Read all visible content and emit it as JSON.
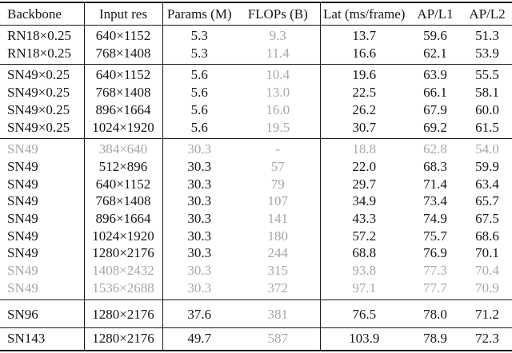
{
  "table": {
    "colors": {
      "text": "#161616",
      "muted": "#a7a7a7",
      "rule": "#1b1b1b"
    },
    "muted_column_index": 3,
    "columns": [
      {
        "label": "Backbone",
        "align": "left"
      },
      {
        "label": "Input res",
        "align": "center"
      },
      {
        "label": "Params (M)",
        "align": "center"
      },
      {
        "label": "FLOPs (B)",
        "align": "center"
      },
      {
        "label": "Lat (ms/frame)",
        "align": "center"
      },
      {
        "label": "AP/L1",
        "align": "center"
      },
      {
        "label": "AP/L2",
        "align": "center"
      }
    ],
    "sections": [
      {
        "name": "RN18x0.25",
        "rows": [
          {
            "muted": false,
            "cells": [
              "RN18×0.25",
              "640×1152",
              "5.3",
              "9.3",
              "13.7",
              "59.6",
              "51.3"
            ]
          },
          {
            "muted": false,
            "cells": [
              "RN18×0.25",
              "768×1408",
              "5.3",
              "11.4",
              "16.6",
              "62.1",
              "53.9"
            ]
          }
        ]
      },
      {
        "name": "SN49x0.25",
        "rows": [
          {
            "muted": false,
            "cells": [
              "SN49×0.25",
              "640×1152",
              "5.6",
              "10.4",
              "19.6",
              "63.9",
              "55.5"
            ]
          },
          {
            "muted": false,
            "cells": [
              "SN49×0.25",
              "768×1408",
              "5.6",
              "13.0",
              "22.5",
              "66.1",
              "58.1"
            ]
          },
          {
            "muted": false,
            "cells": [
              "SN49×0.25",
              "896×1664",
              "5.6",
              "16.0",
              "26.2",
              "67.9",
              "60.0"
            ]
          },
          {
            "muted": false,
            "cells": [
              "SN49×0.25",
              "1024×1920",
              "5.6",
              "19.5",
              "30.7",
              "69.2",
              "61.5"
            ]
          }
        ]
      },
      {
        "name": "SN49",
        "rows": [
          {
            "muted": true,
            "cells": [
              "SN49",
              "384×640",
              "30.3",
              "-",
              "18.8",
              "62.8",
              "54.0"
            ]
          },
          {
            "muted": false,
            "cells": [
              "SN49",
              "512×896",
              "30.3",
              "57",
              "22.0",
              "68.3",
              "59.9"
            ]
          },
          {
            "muted": false,
            "cells": [
              "SN49",
              "640×1152",
              "30.3",
              "79",
              "29.7",
              "71.4",
              "63.4"
            ]
          },
          {
            "muted": false,
            "cells": [
              "SN49",
              "768×1408",
              "30.3",
              "107",
              "34.9",
              "73.4",
              "65.7"
            ]
          },
          {
            "muted": false,
            "cells": [
              "SN49",
              "896×1664",
              "30.3",
              "141",
              "43.3",
              "74.9",
              "67.5"
            ]
          },
          {
            "muted": false,
            "cells": [
              "SN49",
              "1024×1920",
              "30.3",
              "180",
              "57.2",
              "75.7",
              "68.6"
            ]
          },
          {
            "muted": false,
            "cells": [
              "SN49",
              "1280×2176",
              "30.3",
              "244",
              "68.8",
              "76.9",
              "70.1"
            ]
          },
          {
            "muted": true,
            "cells": [
              "SN49",
              "1408×2432",
              "30.3",
              "315",
              "93.8",
              "77.3",
              "70.4"
            ]
          },
          {
            "muted": true,
            "cells": [
              "SN49",
              "1536×2688",
              "30.3",
              "372",
              "97.1",
              "77.7",
              "70.9"
            ]
          }
        ]
      },
      {
        "name": "SN96",
        "rows": [
          {
            "muted": false,
            "cells": [
              "SN96",
              "1280×2176",
              "37.6",
              "381",
              "76.5",
              "78.0",
              "71.2"
            ]
          }
        ]
      },
      {
        "name": "SN143",
        "rows": [
          {
            "muted": false,
            "cells": [
              "SN143",
              "1280×2176",
              "49.7",
              "587",
              "103.9",
              "78.9",
              "72.3"
            ]
          }
        ]
      }
    ]
  }
}
